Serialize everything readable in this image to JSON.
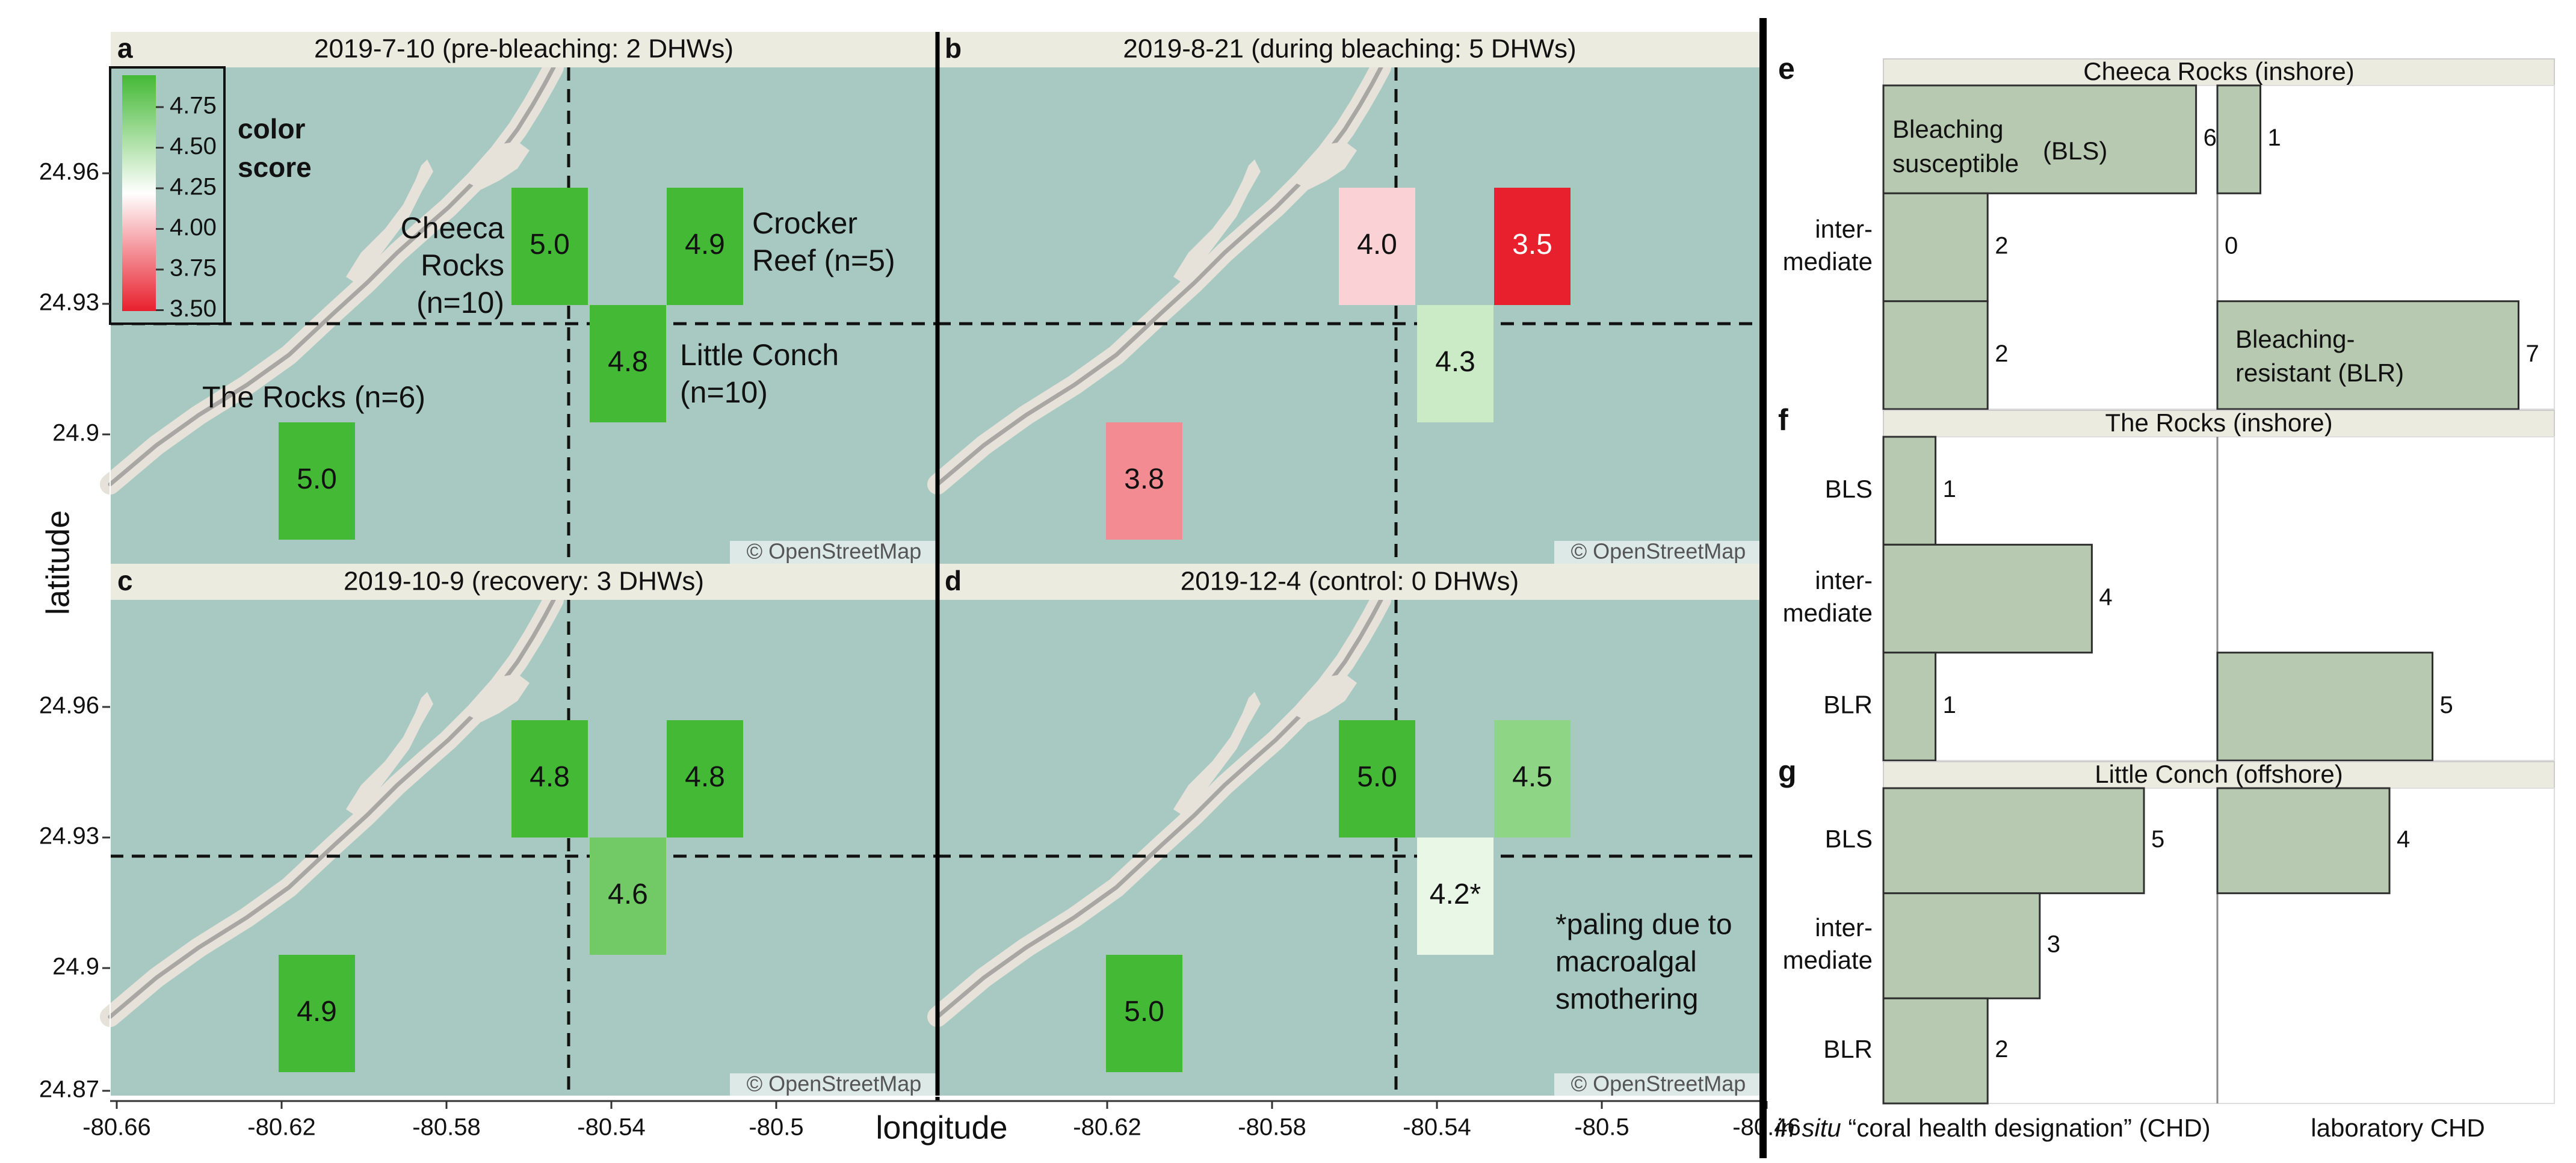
{
  "colors": {
    "sea": "#a7c9c2",
    "land": "#e7e2d9",
    "road": "#a8a7a3",
    "header_bg": "#ecebdf",
    "bar_fill": "#b7c9b0",
    "bar_edge": "#2f2f2f",
    "scale_high": "#44b935",
    "scale_mid": "#ffffff",
    "scale_low": "#e8202d"
  },
  "maps": {
    "y_axis_label": "latitude",
    "x_axis_label": "longitude",
    "lat_ticks": [
      "24.96",
      "24.93",
      "24.9",
      "24.87"
    ],
    "lon_ticks": [
      "-80.66",
      "-80.62",
      "-80.58",
      "-80.54",
      "-80.5",
      "-80.46"
    ],
    "attribution": "© OpenStreetMap",
    "legend": {
      "title_line1": "color",
      "title_line2": "score",
      "range": [
        3.5,
        4.75
      ],
      "ticks": [
        "4.75",
        "4.50",
        "4.25",
        "4.00",
        "3.75",
        "3.50"
      ]
    },
    "site_labels": [
      {
        "key": "cheeca",
        "lines": [
          "Cheeca",
          "Rocks",
          "(n=10)"
        ]
      },
      {
        "key": "crocker",
        "lines": [
          "Crocker",
          "Reef (n=5)"
        ]
      },
      {
        "key": "conch",
        "lines": [
          "Little Conch",
          "(n=10)"
        ]
      },
      {
        "key": "rocks",
        "lines": [
          "The Rocks (n=6)"
        ]
      }
    ],
    "panels": [
      {
        "letter": "a",
        "title": "2019-7-10 (pre-bleaching: 2 DHWs)",
        "values": {
          "cheeca": 5.0,
          "crocker": 4.9,
          "conch": 4.8,
          "rocks": 5.0
        },
        "labels": {
          "cheeca": "5.0",
          "crocker": "4.9",
          "conch": "4.8",
          "rocks": "5.0"
        }
      },
      {
        "letter": "b",
        "title": "2019-8-21 (during bleaching: 5 DHWs)",
        "values": {
          "cheeca": 4.0,
          "crocker": 3.5,
          "conch": 4.3,
          "rocks": 3.8
        },
        "labels": {
          "cheeca": "4.0",
          "crocker": "3.5",
          "conch": "4.3",
          "rocks": "3.8"
        }
      },
      {
        "letter": "c",
        "title": "2019-10-9 (recovery: 3 DHWs)",
        "values": {
          "cheeca": 4.8,
          "crocker": 4.8,
          "conch": 4.6,
          "rocks": 4.9
        },
        "labels": {
          "cheeca": "4.8",
          "crocker": "4.8",
          "conch": "4.6",
          "rocks": "4.9"
        }
      },
      {
        "letter": "d",
        "title": "2019-12-4 (control: 0 DHWs)",
        "values": {
          "cheeca": 5.0,
          "crocker": 4.5,
          "conch": 4.2,
          "rocks": 5.0
        },
        "labels": {
          "cheeca": "5.0",
          "crocker": "4.5",
          "conch": "4.2*",
          "rocks": "5.0"
        },
        "note_lines": [
          "*paling due to",
          "macroalgal",
          "smothering"
        ]
      }
    ]
  },
  "bars": {
    "xlabel_left_italic": "in situ",
    "xlabel_left_rest": " “coral health designation” (CHD)",
    "xlabel_right": "laboratory CHD",
    "panels": [
      {
        "letter": "e",
        "title": "Cheeca Rocks (inshore)",
        "categories": [
          "Bleaching susceptible (BLS)",
          "inter-mediate",
          "Bleaching-resistant (BLR)"
        ],
        "in_situ": [
          6,
          2,
          2
        ],
        "lab": [
          1,
          0,
          7
        ]
      },
      {
        "letter": "f",
        "title": "The Rocks (inshore)",
        "categories": [
          "BLS",
          "inter-mediate",
          "BLR"
        ],
        "in_situ": [
          1,
          4,
          1
        ],
        "lab": [
          0,
          0,
          5
        ]
      },
      {
        "letter": "g",
        "title": "Little Conch (offshore)",
        "categories": [
          "BLS",
          "inter-mediate",
          "BLR"
        ],
        "in_situ": [
          5,
          3,
          2
        ],
        "lab": [
          4,
          0,
          0
        ]
      }
    ],
    "tick_labels": {
      "e": [
        [
          "",
          ""
        ],
        [
          "inter-",
          "mediate"
        ],
        [
          "",
          ""
        ]
      ],
      "f": [
        [
          "BLS"
        ],
        [
          "inter-",
          "mediate"
        ],
        [
          "BLR"
        ]
      ],
      "g": [
        [
          "BLS"
        ],
        [
          "inter-",
          "mediate"
        ],
        [
          "BLR"
        ]
      ]
    },
    "inbar_labels": {
      "e_top": [
        "Bleaching",
        "susceptible"
      ],
      "e_top_abbr": "(BLS)",
      "e_bottom": [
        "Bleaching-",
        "resistant (BLR)"
      ]
    }
  },
  "chart_data": [
    {
      "type": "heatmap",
      "title": "2019-7-10 (pre-bleaching: 2 DHWs)",
      "xlabel": "longitude",
      "ylabel": "latitude",
      "categories": [
        "Cheeca Rocks",
        "Crocker Reef",
        "Little Conch",
        "The Rocks"
      ],
      "values": [
        5.0,
        4.9,
        4.8,
        5.0
      ]
    },
    {
      "type": "heatmap",
      "title": "2019-8-21 (during bleaching: 5 DHWs)",
      "categories": [
        "Cheeca Rocks",
        "Crocker Reef",
        "Little Conch",
        "The Rocks"
      ],
      "values": [
        4.0,
        3.5,
        4.3,
        3.8
      ]
    },
    {
      "type": "heatmap",
      "title": "2019-10-9 (recovery: 3 DHWs)",
      "categories": [
        "Cheeca Rocks",
        "Crocker Reef",
        "Little Conch",
        "The Rocks"
      ],
      "values": [
        4.8,
        4.8,
        4.6,
        4.9
      ]
    },
    {
      "type": "heatmap",
      "title": "2019-12-4 (control: 0 DHWs)",
      "categories": [
        "Cheeca Rocks",
        "Crocker Reef",
        "Little Conch",
        "The Rocks"
      ],
      "values": [
        5.0,
        4.5,
        4.2,
        5.0
      ]
    },
    {
      "type": "bar",
      "title": "Cheeca Rocks (inshore)",
      "categories": [
        "BLS",
        "intermediate",
        "BLR"
      ],
      "series": [
        {
          "name": "in situ",
          "values": [
            6,
            2,
            2
          ]
        },
        {
          "name": "laboratory",
          "values": [
            1,
            0,
            7
          ]
        }
      ]
    },
    {
      "type": "bar",
      "title": "The Rocks (inshore)",
      "categories": [
        "BLS",
        "intermediate",
        "BLR"
      ],
      "series": [
        {
          "name": "in situ",
          "values": [
            1,
            4,
            1
          ]
        },
        {
          "name": "laboratory",
          "values": [
            0,
            0,
            5
          ]
        }
      ]
    },
    {
      "type": "bar",
      "title": "Little Conch (offshore)",
      "categories": [
        "BLS",
        "intermediate",
        "BLR"
      ],
      "series": [
        {
          "name": "in situ",
          "values": [
            5,
            3,
            2
          ]
        },
        {
          "name": "laboratory",
          "values": [
            4,
            0,
            0
          ]
        }
      ]
    }
  ]
}
